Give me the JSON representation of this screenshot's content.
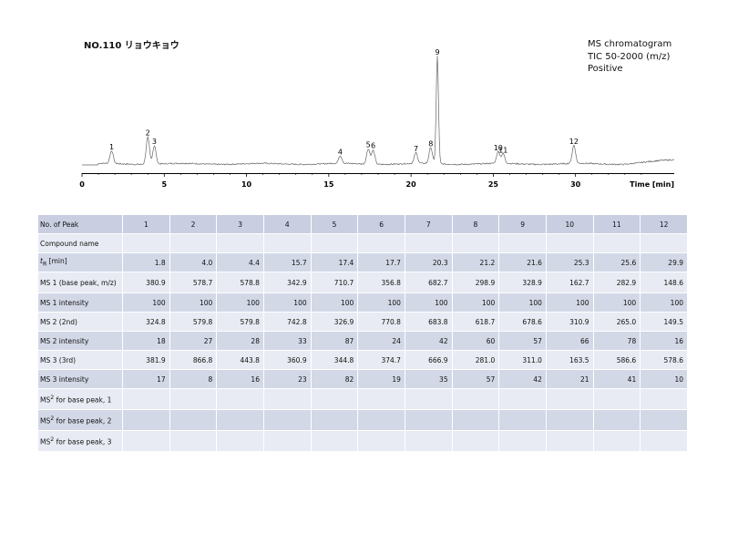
{
  "header": {
    "title": "NO.110 リョウキョウ",
    "legend": [
      "MS chromatogram",
      "TIC 50-2000 (m/z)",
      "Positive"
    ]
  },
  "chart_data": {
    "type": "line",
    "xlabel": "Time [min]",
    "xlim": [
      0,
      36
    ],
    "x_ticks": [
      0,
      5,
      10,
      15,
      20,
      25,
      30
    ],
    "peak_labels": [
      {
        "label": "1",
        "x": 1.8
      },
      {
        "label": "2",
        "x": 4.0
      },
      {
        "label": "3",
        "x": 4.4
      },
      {
        "label": "4",
        "x": 15.7
      },
      {
        "label": "5",
        "x": 17.4
      },
      {
        "label": "6",
        "x": 17.7
      },
      {
        "label": "7",
        "x": 20.3
      },
      {
        "label": "8",
        "x": 21.2
      },
      {
        "label": "9",
        "x": 21.6
      },
      {
        "label": "10",
        "x": 25.3
      },
      {
        "label": "11",
        "x": 25.6
      },
      {
        "label": "12",
        "x": 29.9
      }
    ],
    "trace_peaks": [
      {
        "x": 1.8,
        "h": 0.12
      },
      {
        "x": 4.0,
        "h": 0.25
      },
      {
        "x": 4.4,
        "h": 0.17
      },
      {
        "x": 15.7,
        "h": 0.07
      },
      {
        "x": 17.4,
        "h": 0.14
      },
      {
        "x": 17.7,
        "h": 0.13
      },
      {
        "x": 20.3,
        "h": 0.1
      },
      {
        "x": 21.2,
        "h": 0.15
      },
      {
        "x": 21.6,
        "h": 1.0
      },
      {
        "x": 25.3,
        "h": 0.11
      },
      {
        "x": 25.6,
        "h": 0.09
      },
      {
        "x": 29.9,
        "h": 0.17
      }
    ]
  },
  "table": {
    "labels": {
      "peak": "No. of Peak",
      "compound": "Compound name",
      "tr_main": "t",
      "tr_sub": "R",
      "tr_unit": " [min]",
      "ms1": "MS 1 (base peak, m/z)",
      "ms1_int": "MS 1 intensity",
      "ms2": "MS 2 (2nd)",
      "ms2_int": "MS 2 intensity",
      "ms3": "MS 3 (3rd)",
      "ms3_int": "MS 3 intensity",
      "ms2bp_main": "MS",
      "ms2bp_sup": "2",
      "ms2bp_1": " for base peak, 1",
      "ms2bp_2": " for base peak, 2",
      "ms2bp_3": " for base peak, 3"
    },
    "peaks": [
      "1",
      "2",
      "3",
      "4",
      "5",
      "6",
      "7",
      "8",
      "9",
      "10",
      "11",
      "12"
    ],
    "tr": [
      "1.8",
      "4.0",
      "4.4",
      "15.7",
      "17.4",
      "17.7",
      "20.3",
      "21.2",
      "21.6",
      "25.3",
      "25.6",
      "29.9"
    ],
    "ms1": [
      "380.9",
      "578.7",
      "578.8",
      "342.9",
      "710.7",
      "356.8",
      "682.7",
      "298.9",
      "328.9",
      "162.7",
      "282.9",
      "148.6"
    ],
    "ms1_int": [
      "100",
      "100",
      "100",
      "100",
      "100",
      "100",
      "100",
      "100",
      "100",
      "100",
      "100",
      "100"
    ],
    "ms2": [
      "324.8",
      "579.8",
      "579.8",
      "742.8",
      "326.9",
      "770.8",
      "683.8",
      "618.7",
      "678.6",
      "310.9",
      "265.0",
      "149.5"
    ],
    "ms2_int": [
      "18",
      "27",
      "28",
      "33",
      "87",
      "24",
      "42",
      "60",
      "57",
      "66",
      "78",
      "16"
    ],
    "ms3": [
      "381.9",
      "866.8",
      "443.8",
      "360.9",
      "344.8",
      "374.7",
      "666.9",
      "281.0",
      "311.0",
      "163.5",
      "586.6",
      "578.6"
    ],
    "ms3_int": [
      "17",
      "8",
      "16",
      "23",
      "82",
      "19",
      "35",
      "57",
      "42",
      "21",
      "41",
      "10"
    ]
  }
}
